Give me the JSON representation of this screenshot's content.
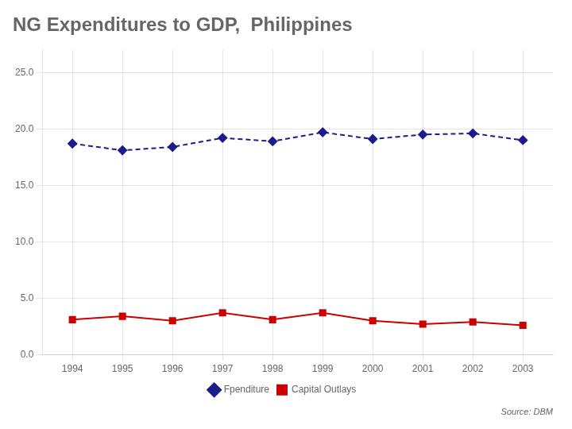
{
  "chart_data": {
    "type": "line",
    "title": "NG Expenditures to GDP,  Philippines",
    "x": [
      1994,
      1995,
      1996,
      1997,
      1998,
      1999,
      2000,
      2001,
      2002,
      2003
    ],
    "series": [
      {
        "name": "Fpenditure",
        "color": "#1C1C8C",
        "marker": "diamond",
        "line_style": "dashed",
        "values": [
          18.7,
          18.1,
          18.4,
          19.2,
          18.9,
          19.7,
          19.1,
          19.5,
          19.6,
          19.0
        ]
      },
      {
        "name": "Capital Outlays",
        "color": "#CC0000",
        "marker": "square",
        "line_style": "solid",
        "values": [
          3.1,
          3.4,
          3.0,
          3.7,
          3.1,
          3.7,
          3.0,
          2.7,
          2.9,
          2.6
        ]
      }
    ],
    "xlim": [
      1993.4,
      2003.6
    ],
    "xticks": [
      1994,
      1995,
      1996,
      1997,
      1998,
      1999,
      2000,
      2001,
      2002,
      2003
    ],
    "ylim": [
      0,
      27
    ],
    "yticks": [
      {
        "value": 0,
        "label": "0.0"
      },
      {
        "value": 5,
        "label": "5.0"
      },
      {
        "value": 10,
        "label": "10.0"
      },
      {
        "value": 15,
        "label": "15.0"
      },
      {
        "value": 20,
        "label": "20.0"
      },
      {
        "value": 25,
        "label": "25.0"
      }
    ],
    "grid": true,
    "legend": "bottom",
    "annotation": "Source: DBM"
  }
}
